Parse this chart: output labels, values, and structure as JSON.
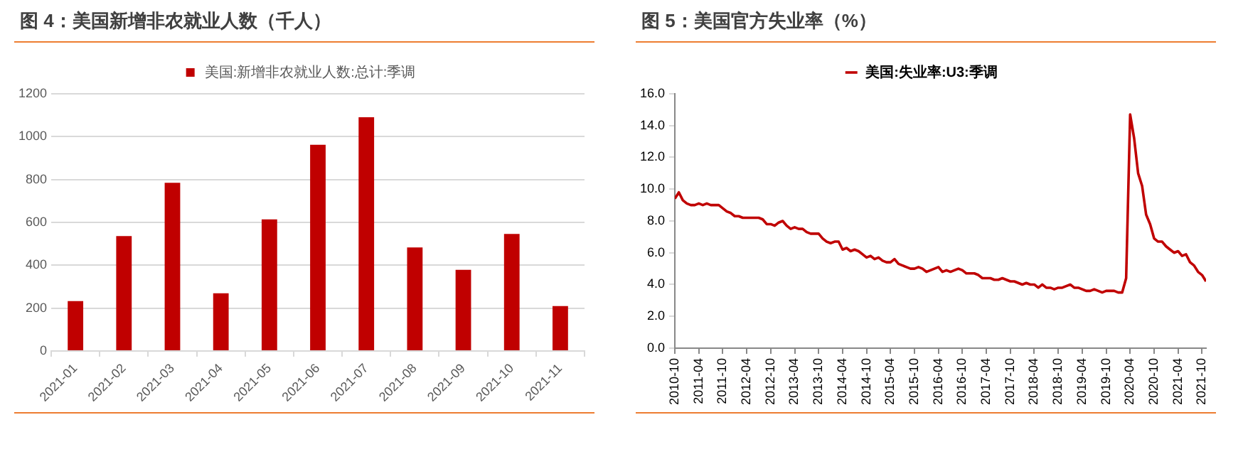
{
  "chart_data": [
    {
      "type": "bar",
      "title": "图 4：美国新增非农就业人数（千人）",
      "categories": [
        "2021-01",
        "2021-02",
        "2021-03",
        "2021-04",
        "2021-05",
        "2021-06",
        "2021-07",
        "2021-08",
        "2021-09",
        "2021-10",
        "2021-11"
      ],
      "series": [
        {
          "name": "美国:新增非农就业人数:总计:季调",
          "color": "#c00000",
          "values": [
            233,
            536,
            785,
            269,
            614,
            962,
            1091,
            483,
            379,
            546,
            210
          ]
        }
      ],
      "ylim": [
        0,
        1200
      ],
      "yticks": [
        0,
        200,
        400,
        600,
        800,
        1000,
        1200
      ],
      "grid": "y",
      "legend": "top"
    },
    {
      "type": "line",
      "title": "图 5：美国官方失业率（%）",
      "x": [
        "2010-10",
        "2010-11",
        "2010-12",
        "2011-01",
        "2011-02",
        "2011-03",
        "2011-04",
        "2011-05",
        "2011-06",
        "2011-07",
        "2011-08",
        "2011-09",
        "2011-10",
        "2011-11",
        "2011-12",
        "2012-01",
        "2012-02",
        "2012-03",
        "2012-04",
        "2012-05",
        "2012-06",
        "2012-07",
        "2012-08",
        "2012-09",
        "2012-10",
        "2012-11",
        "2012-12",
        "2013-01",
        "2013-02",
        "2013-03",
        "2013-04",
        "2013-05",
        "2013-06",
        "2013-07",
        "2013-08",
        "2013-09",
        "2013-10",
        "2013-11",
        "2013-12",
        "2014-01",
        "2014-02",
        "2014-03",
        "2014-04",
        "2014-05",
        "2014-06",
        "2014-07",
        "2014-08",
        "2014-09",
        "2014-10",
        "2014-11",
        "2014-12",
        "2015-01",
        "2015-02",
        "2015-03",
        "2015-04",
        "2015-05",
        "2015-06",
        "2015-07",
        "2015-08",
        "2015-09",
        "2015-10",
        "2015-11",
        "2015-12",
        "2016-01",
        "2016-02",
        "2016-03",
        "2016-04",
        "2016-05",
        "2016-06",
        "2016-07",
        "2016-08",
        "2016-09",
        "2016-10",
        "2016-11",
        "2016-12",
        "2017-01",
        "2017-02",
        "2017-03",
        "2017-04",
        "2017-05",
        "2017-06",
        "2017-07",
        "2017-08",
        "2017-09",
        "2017-10",
        "2017-11",
        "2017-12",
        "2018-01",
        "2018-02",
        "2018-03",
        "2018-04",
        "2018-05",
        "2018-06",
        "2018-07",
        "2018-08",
        "2018-09",
        "2018-10",
        "2018-11",
        "2018-12",
        "2019-01",
        "2019-02",
        "2019-03",
        "2019-04",
        "2019-05",
        "2019-06",
        "2019-07",
        "2019-08",
        "2019-09",
        "2019-10",
        "2019-11",
        "2019-12",
        "2020-01",
        "2020-02",
        "2020-03",
        "2020-04",
        "2020-05",
        "2020-06",
        "2020-07",
        "2020-08",
        "2020-09",
        "2020-10",
        "2020-11",
        "2020-12",
        "2021-01",
        "2021-02",
        "2021-03",
        "2021-04",
        "2021-05",
        "2021-06",
        "2021-07",
        "2021-08",
        "2021-09",
        "2021-10",
        "2021-11"
      ],
      "series": [
        {
          "name": "美国:失业率:U3:季调",
          "color": "#c00000",
          "values": [
            9.4,
            9.8,
            9.3,
            9.1,
            9.0,
            9.0,
            9.1,
            9.0,
            9.1,
            9.0,
            9.0,
            9.0,
            8.8,
            8.6,
            8.5,
            8.3,
            8.3,
            8.2,
            8.2,
            8.2,
            8.2,
            8.2,
            8.1,
            7.8,
            7.8,
            7.7,
            7.9,
            8.0,
            7.7,
            7.5,
            7.6,
            7.5,
            7.5,
            7.3,
            7.2,
            7.2,
            7.2,
            6.9,
            6.7,
            6.6,
            6.7,
            6.7,
            6.2,
            6.3,
            6.1,
            6.2,
            6.1,
            5.9,
            5.7,
            5.8,
            5.6,
            5.7,
            5.5,
            5.4,
            5.4,
            5.6,
            5.3,
            5.2,
            5.1,
            5.0,
            5.0,
            5.1,
            5.0,
            4.8,
            4.9,
            5.0,
            5.1,
            4.8,
            4.9,
            4.8,
            4.9,
            5.0,
            4.9,
            4.7,
            4.7,
            4.7,
            4.6,
            4.4,
            4.4,
            4.4,
            4.3,
            4.3,
            4.4,
            4.3,
            4.2,
            4.2,
            4.1,
            4.0,
            4.1,
            4.0,
            4.0,
            3.8,
            4.0,
            3.8,
            3.8,
            3.7,
            3.8,
            3.8,
            3.9,
            4.0,
            3.8,
            3.8,
            3.7,
            3.6,
            3.6,
            3.7,
            3.6,
            3.5,
            3.6,
            3.6,
            3.6,
            3.5,
            3.5,
            4.4,
            14.7,
            13.2,
            11.0,
            10.2,
            8.4,
            7.8,
            6.9,
            6.7,
            6.7,
            6.4,
            6.2,
            6.0,
            6.1,
            5.8,
            5.9,
            5.4,
            5.2,
            4.8,
            4.6,
            4.2
          ]
        }
      ],
      "xlim": [
        "2010-10",
        "2021-11"
      ],
      "xticks": [
        "2010-10",
        "2011-04",
        "2011-10",
        "2012-04",
        "2012-10",
        "2013-04",
        "2013-10",
        "2014-04",
        "2014-10",
        "2015-04",
        "2015-10",
        "2016-04",
        "2016-10",
        "2017-04",
        "2017-10",
        "2018-04",
        "2018-10",
        "2019-04",
        "2019-10",
        "2020-04",
        "2020-10",
        "2021-04",
        "2021-10"
      ],
      "ylim": [
        0,
        16
      ],
      "yticks": [
        {
          "value": 0,
          "label": "0.0"
        },
        {
          "value": 2,
          "label": "2.0"
        },
        {
          "value": 4,
          "label": "4.0"
        },
        {
          "value": 6,
          "label": "6.0"
        },
        {
          "value": 8,
          "label": "8.0"
        },
        {
          "value": 10,
          "label": "10.0"
        },
        {
          "value": 12,
          "label": "12.0"
        },
        {
          "value": 14,
          "label": "14.0"
        },
        {
          "value": 16,
          "label": "16.0"
        }
      ],
      "grid": false,
      "legend": "top",
      "marker": "none",
      "line_style": "solid"
    }
  ]
}
